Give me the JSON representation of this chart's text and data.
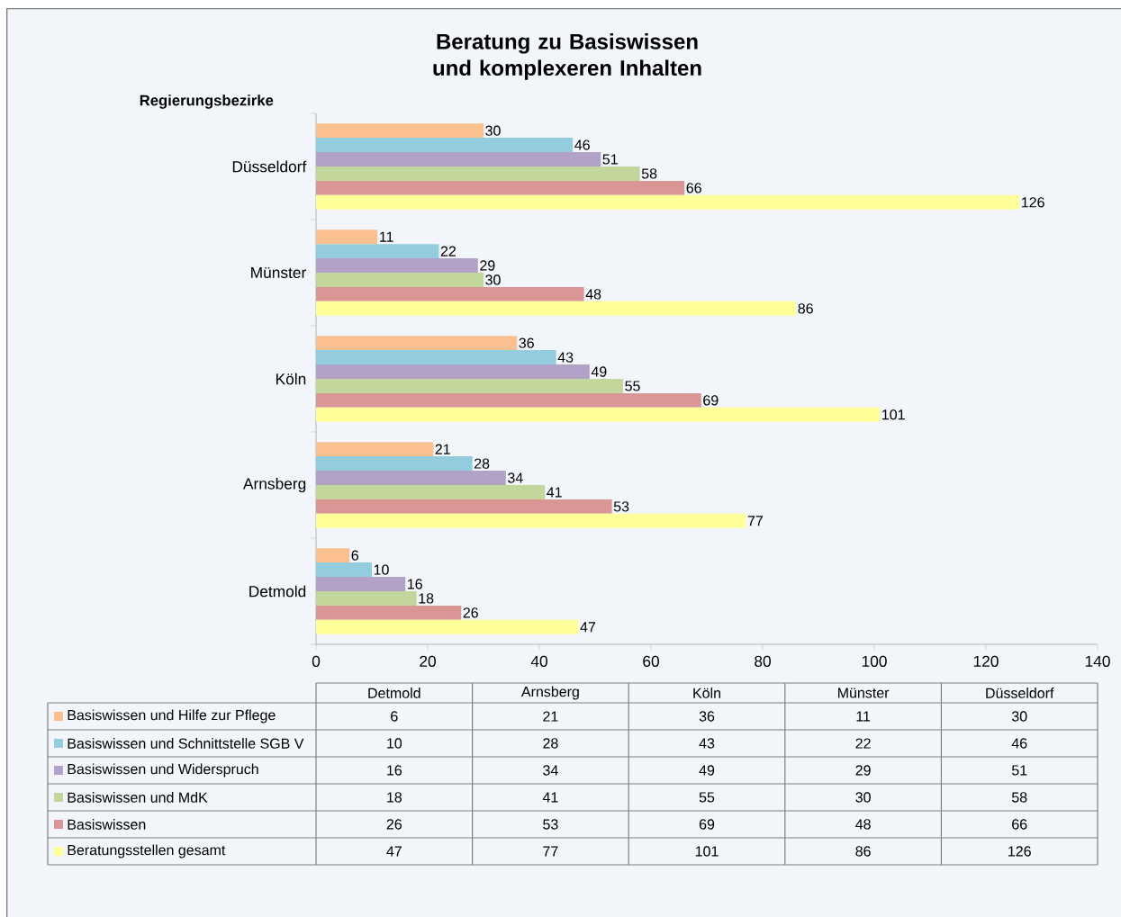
{
  "chart_data": [
    {
      "type": "bar",
      "orientation": "horizontal",
      "title": "Beratung zu Basiswissen und komplexeren Inhalten",
      "ylabel": "Regierungsbezirke",
      "categories": [
        "Düsseldorf",
        "Münster",
        "Köln",
        "Arnsberg",
        "Detmold"
      ],
      "series": [
        {
          "color": "#fac090",
          "values": [
            30,
            11,
            36,
            21,
            6
          ]
        },
        {
          "color": "#93cddd",
          "values": [
            46,
            22,
            43,
            28,
            10
          ]
        },
        {
          "color": "#b3a2c7",
          "values": [
            51,
            29,
            49,
            34,
            16
          ]
        },
        {
          "color": "#c3d69b",
          "values": [
            58,
            30,
            55,
            41,
            18
          ]
        },
        {
          "color": "#d99694",
          "values": [
            66,
            48,
            69,
            53,
            26
          ]
        },
        {
          "color": "#ffff99",
          "values": [
            126,
            86,
            101,
            77,
            47
          ]
        }
      ],
      "xlim": [
        0,
        140
      ],
      "xticks": [
        0,
        20,
        40,
        60,
        80,
        100,
        120,
        140
      ],
      "data_labels": true
    },
    {
      "type": "other",
      "categories": [
        "Detmold",
        "Arnsberg",
        "Köln",
        "Münster",
        "Düsseldorf"
      ],
      "series": [
        {
          "name": "Basiswissen und Hilfe zur Pflege",
          "color": "#fac090",
          "values": [
            6,
            21,
            36,
            11,
            30
          ]
        },
        {
          "name": "Basiswissen und Schnittstelle SGB V",
          "color": "#93cddd",
          "values": [
            10,
            28,
            43,
            22,
            46
          ]
        },
        {
          "name": "Basiswissen und Widerspruch",
          "color": "#b3a2c7",
          "values": [
            16,
            34,
            49,
            29,
            51
          ]
        },
        {
          "name": "Basiswissen und MdK",
          "color": "#c3d69b",
          "values": [
            18,
            41,
            55,
            30,
            58
          ]
        },
        {
          "name": "Basiswissen",
          "color": "#d99694",
          "values": [
            26,
            53,
            69,
            48,
            66
          ]
        },
        {
          "name": "Beratungsstellen gesamt",
          "color": "#ffff99",
          "values": [
            47,
            77,
            101,
            86,
            126
          ]
        }
      ],
      "data_labels": true
    }
  ]
}
